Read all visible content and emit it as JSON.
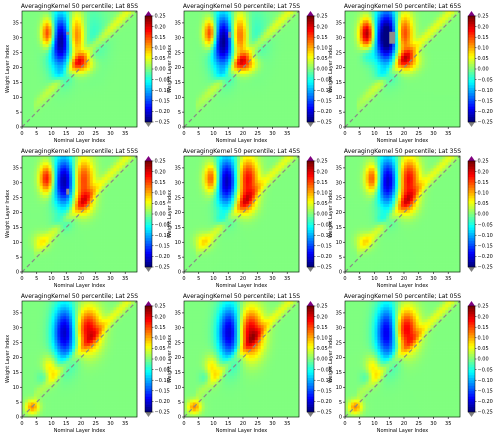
{
  "figure": {
    "panel_title_prefix": "AveragingKernel 50 percentile; Lat ",
    "xlabel": "Nominal Layer Index",
    "ylabel": "Weight Layer Index"
  },
  "chart_data": [
    {
      "type": "heatmap",
      "title": "AveragingKernel 50 percentile; Lat 85S",
      "lat": "85S",
      "xlabel": "Nominal Layer Index",
      "ylabel": "Weight Layer Index",
      "xlim": [
        0,
        39
      ],
      "ylim": [
        0,
        39
      ],
      "xticks": [
        0,
        5,
        10,
        15,
        20,
        25,
        30,
        35
      ],
      "yticks": [
        0,
        5,
        10,
        15,
        20,
        25,
        30,
        35
      ],
      "colorbar": {
        "min": -0.25,
        "max": 0.25,
        "ticks": [
          -0.25,
          -0.2,
          -0.15,
          -0.1,
          -0.05,
          0.0,
          0.05,
          0.1,
          0.15,
          0.2,
          0.25
        ],
        "colormap": "jet"
      },
      "features": [
        {
          "x": 8.5,
          "y": 31,
          "sx": 1.6,
          "sy": 3.5,
          "v": 0.22
        },
        {
          "x": 13,
          "y": 28.5,
          "sx": 3.0,
          "sy": 6.5,
          "v": -0.26
        },
        {
          "x": 17.5,
          "y": 30,
          "sx": 2.2,
          "sy": 5.5,
          "v": 0.2
        },
        {
          "x": 19.5,
          "y": 21,
          "sx": 2.8,
          "sy": 2.2,
          "v": 0.14
        },
        {
          "x": 13,
          "y": 17,
          "sx": 1.8,
          "sy": 1.5,
          "v": -0.05
        },
        {
          "x": 23,
          "y": 30,
          "sx": 3.5,
          "sy": 7,
          "v": -0.04
        }
      ],
      "masked": [
        {
          "x": 15,
          "y": 31,
          "w": 1,
          "h": 1
        }
      ]
    },
    {
      "type": "heatmap",
      "title": "AveragingKernel 50 percentile; Lat 75S",
      "lat": "75S",
      "xlabel": "Nominal Layer Index",
      "ylabel": "Weight Layer Index",
      "xlim": [
        0,
        39
      ],
      "ylim": [
        0,
        39
      ],
      "xticks": [
        0,
        5,
        10,
        15,
        20,
        25,
        30,
        35
      ],
      "yticks": [
        0,
        5,
        10,
        15,
        20,
        25,
        30,
        35
      ],
      "colorbar": {
        "min": -0.25,
        "max": 0.25,
        "ticks": [
          -0.25,
          -0.2,
          -0.15,
          -0.1,
          -0.05,
          0.0,
          0.05,
          0.1,
          0.15,
          0.2,
          0.25
        ],
        "colormap": "jet"
      },
      "features": [
        {
          "x": 8.5,
          "y": 31,
          "sx": 1.6,
          "sy": 3.5,
          "v": 0.22
        },
        {
          "x": 13,
          "y": 28.5,
          "sx": 3.0,
          "sy": 6.5,
          "v": -0.26
        },
        {
          "x": 18,
          "y": 30,
          "sx": 2.2,
          "sy": 5.5,
          "v": 0.2
        },
        {
          "x": 20,
          "y": 21,
          "sx": 2.8,
          "sy": 2.2,
          "v": 0.15
        },
        {
          "x": 13,
          "y": 17,
          "sx": 1.8,
          "sy": 1.5,
          "v": -0.05
        },
        {
          "x": 23,
          "y": 30,
          "sx": 3.5,
          "sy": 7,
          "v": -0.04
        }
      ],
      "masked": [
        {
          "x": 15,
          "y": 30,
          "w": 1,
          "h": 2
        }
      ]
    },
    {
      "type": "heatmap",
      "title": "AveragingKernel 50 percentile; Lat 65S",
      "lat": "65S",
      "xlabel": "Nominal Layer Index",
      "ylabel": "Weight Layer Index",
      "xlim": [
        0,
        39
      ],
      "ylim": [
        0,
        39
      ],
      "xticks": [
        0,
        5,
        10,
        15,
        20,
        25,
        30,
        35
      ],
      "yticks": [
        0,
        5,
        10,
        15,
        20,
        25,
        30,
        35
      ],
      "colorbar": {
        "min": -0.25,
        "max": 0.25,
        "ticks": [
          -0.25,
          -0.2,
          -0.15,
          -0.1,
          -0.05,
          0.0,
          0.05,
          0.1,
          0.15,
          0.2,
          0.25
        ],
        "colormap": "jet"
      },
      "features": [
        {
          "x": 7,
          "y": 31,
          "sx": 1.8,
          "sy": 3.5,
          "v": 0.25
        },
        {
          "x": 14,
          "y": 30,
          "sx": 3.2,
          "sy": 6.5,
          "v": -0.3
        },
        {
          "x": 19,
          "y": 31,
          "sx": 2.3,
          "sy": 5,
          "v": 0.22
        },
        {
          "x": 20,
          "y": 22,
          "sx": 2.8,
          "sy": 2.5,
          "v": 0.16
        },
        {
          "x": 13,
          "y": 17,
          "sx": 1.8,
          "sy": 1.5,
          "v": -0.05
        },
        {
          "x": 7,
          "y": 24,
          "sx": 1.5,
          "sy": 2,
          "v": -0.05
        }
      ],
      "masked": [
        {
          "x": 15,
          "y": 28,
          "w": 2,
          "h": 4
        }
      ]
    },
    {
      "type": "heatmap",
      "title": "AveragingKernel 50 percentile; Lat 55S",
      "lat": "55S",
      "xlabel": "Nominal Layer Index",
      "ylabel": "Weight Layer Index",
      "xlim": [
        0,
        39
      ],
      "ylim": [
        0,
        39
      ],
      "xticks": [
        0,
        5,
        10,
        15,
        20,
        25,
        30,
        35
      ],
      "yticks": [
        0,
        5,
        10,
        15,
        20,
        25,
        30,
        35
      ],
      "colorbar": {
        "min": -0.25,
        "max": 0.25,
        "ticks": [
          -0.25,
          -0.2,
          -0.15,
          -0.1,
          -0.05,
          0.0,
          0.05,
          0.1,
          0.15,
          0.2,
          0.25
        ],
        "colormap": "jet"
      },
      "features": [
        {
          "x": 8,
          "y": 31,
          "sx": 1.8,
          "sy": 3.5,
          "v": 0.2
        },
        {
          "x": 14,
          "y": 30,
          "sx": 2.8,
          "sy": 6,
          "v": -0.24
        },
        {
          "x": 20,
          "y": 31,
          "sx": 2.6,
          "sy": 5,
          "v": 0.17
        },
        {
          "x": 20,
          "y": 23,
          "sx": 2.5,
          "sy": 3,
          "v": 0.12
        },
        {
          "x": 13,
          "y": 16,
          "sx": 1.8,
          "sy": 1.5,
          "v": -0.05
        },
        {
          "x": 6,
          "y": 10,
          "sx": 2,
          "sy": 2,
          "v": 0.05
        }
      ],
      "masked": [
        {
          "x": 15,
          "y": 26,
          "w": 1,
          "h": 2
        }
      ]
    },
    {
      "type": "heatmap",
      "title": "AveragingKernel 50 percentile; Lat 45S",
      "lat": "45S",
      "xlabel": "Nominal Layer Index",
      "ylabel": "Weight Layer Index",
      "xlim": [
        0,
        39
      ],
      "ylim": [
        0,
        39
      ],
      "xticks": [
        0,
        5,
        10,
        15,
        20,
        25,
        30,
        35
      ],
      "yticks": [
        0,
        5,
        10,
        15,
        20,
        25,
        30,
        35
      ],
      "colorbar": {
        "min": -0.25,
        "max": 0.25,
        "ticks": [
          -0.25,
          -0.2,
          -0.15,
          -0.1,
          -0.05,
          0.0,
          0.05,
          0.1,
          0.15,
          0.2,
          0.25
        ],
        "colormap": "jet"
      },
      "features": [
        {
          "x": 9,
          "y": 31,
          "sx": 1.8,
          "sy": 3.5,
          "v": 0.18
        },
        {
          "x": 14,
          "y": 30,
          "sx": 2.8,
          "sy": 6,
          "v": -0.23
        },
        {
          "x": 21,
          "y": 31,
          "sx": 2.6,
          "sy": 5,
          "v": 0.19
        },
        {
          "x": 20,
          "y": 23,
          "sx": 2.5,
          "sy": 3,
          "v": 0.12
        },
        {
          "x": 13,
          "y": 17,
          "sx": 1.8,
          "sy": 1.5,
          "v": -0.05
        },
        {
          "x": 6,
          "y": 10,
          "sx": 2,
          "sy": 2,
          "v": 0.06
        }
      ],
      "masked": []
    },
    {
      "type": "heatmap",
      "title": "AveragingKernel 50 percentile; Lat 35S",
      "lat": "35S",
      "xlabel": "Nominal Layer Index",
      "ylabel": "Weight Layer Index",
      "xlim": [
        0,
        39
      ],
      "ylim": [
        0,
        39
      ],
      "xticks": [
        0,
        5,
        10,
        15,
        20,
        25,
        30,
        35
      ],
      "yticks": [
        0,
        5,
        10,
        15,
        20,
        25,
        30,
        35
      ],
      "colorbar": {
        "min": -0.25,
        "max": 0.25,
        "ticks": [
          -0.25,
          -0.2,
          -0.15,
          -0.1,
          -0.05,
          0.0,
          0.05,
          0.1,
          0.15,
          0.2,
          0.25
        ],
        "colormap": "jet"
      },
      "features": [
        {
          "x": 9,
          "y": 31,
          "sx": 1.8,
          "sy": 3.5,
          "v": 0.18
        },
        {
          "x": 14,
          "y": 30,
          "sx": 2.8,
          "sy": 6,
          "v": -0.22
        },
        {
          "x": 21,
          "y": 31,
          "sx": 2.6,
          "sy": 5,
          "v": 0.19
        },
        {
          "x": 20,
          "y": 23,
          "sx": 2.5,
          "sy": 3,
          "v": 0.12
        },
        {
          "x": 13,
          "y": 17,
          "sx": 1.8,
          "sy": 1.5,
          "v": -0.05
        },
        {
          "x": 6,
          "y": 10,
          "sx": 2,
          "sy": 2,
          "v": 0.06
        }
      ],
      "masked": []
    },
    {
      "type": "heatmap",
      "title": "AveragingKernel 50 percentile; Lat 25S",
      "lat": "25S",
      "xlabel": "Nominal Layer Index",
      "ylabel": "Weight Layer Index",
      "xlim": [
        0,
        39
      ],
      "ylim": [
        0,
        39
      ],
      "xticks": [
        0,
        5,
        10,
        15,
        20,
        25,
        30,
        35
      ],
      "yticks": [
        0,
        5,
        10,
        15,
        20,
        25,
        30,
        35
      ],
      "colorbar": {
        "min": -0.25,
        "max": 0.25,
        "ticks": [
          -0.25,
          -0.2,
          -0.15,
          -0.1,
          -0.05,
          0.0,
          0.05,
          0.1,
          0.15,
          0.2,
          0.25
        ],
        "colormap": "jet"
      },
      "features": [
        {
          "x": 14,
          "y": 28,
          "sx": 2.8,
          "sy": 6.5,
          "v": -0.22
        },
        {
          "x": 22,
          "y": 29,
          "sx": 3.0,
          "sy": 5,
          "v": 0.2
        },
        {
          "x": 9,
          "y": 16,
          "sx": 1.8,
          "sy": 3,
          "v": 0.08
        },
        {
          "x": 3,
          "y": 3,
          "sx": 1.6,
          "sy": 1.6,
          "v": 0.12
        },
        {
          "x": 7,
          "y": 13,
          "sx": 1.5,
          "sy": 2,
          "v": -0.04
        }
      ],
      "masked": []
    },
    {
      "type": "heatmap",
      "title": "AveragingKernel 50 percentile; Lat 15S",
      "lat": "15S",
      "xlabel": "Nominal Layer Index",
      "ylabel": "Weight Layer Index",
      "xlim": [
        0,
        39
      ],
      "ylim": [
        0,
        39
      ],
      "xticks": [
        0,
        5,
        10,
        15,
        20,
        25,
        30,
        35
      ],
      "yticks": [
        0,
        5,
        10,
        15,
        20,
        25,
        30,
        35
      ],
      "colorbar": {
        "min": -0.25,
        "max": 0.25,
        "ticks": [
          -0.25,
          -0.2,
          -0.15,
          -0.1,
          -0.05,
          0.0,
          0.05,
          0.1,
          0.15,
          0.2,
          0.25
        ],
        "colormap": "jet"
      },
      "features": [
        {
          "x": 15,
          "y": 28,
          "sx": 2.8,
          "sy": 6.5,
          "v": -0.22
        },
        {
          "x": 22,
          "y": 28,
          "sx": 3.0,
          "sy": 5.5,
          "v": 0.22
        },
        {
          "x": 9,
          "y": 16,
          "sx": 1.8,
          "sy": 3,
          "v": 0.08
        },
        {
          "x": 3,
          "y": 3,
          "sx": 1.6,
          "sy": 1.6,
          "v": 0.12
        },
        {
          "x": 7,
          "y": 13,
          "sx": 1.5,
          "sy": 2,
          "v": -0.04
        }
      ],
      "masked": []
    },
    {
      "type": "heatmap",
      "title": "AveragingKernel 50 percentile; Lat 05S",
      "lat": "05S",
      "xlabel": "Nominal Layer Index",
      "ylabel": "Weight Layer Index",
      "xlim": [
        0,
        39
      ],
      "ylim": [
        0,
        39
      ],
      "xticks": [
        0,
        5,
        10,
        15,
        20,
        25,
        30,
        35
      ],
      "yticks": [
        0,
        5,
        10,
        15,
        20,
        25,
        30,
        35
      ],
      "colorbar": {
        "min": -0.25,
        "max": 0.25,
        "ticks": [
          -0.25,
          -0.2,
          -0.15,
          -0.1,
          -0.05,
          0.0,
          0.05,
          0.1,
          0.15,
          0.2,
          0.25
        ],
        "colormap": "jet"
      },
      "features": [
        {
          "x": 14,
          "y": 28,
          "sx": 2.8,
          "sy": 6.5,
          "v": -0.22
        },
        {
          "x": 20,
          "y": 29,
          "sx": 3.0,
          "sy": 5,
          "v": 0.21
        },
        {
          "x": 9,
          "y": 16,
          "sx": 1.8,
          "sy": 3,
          "v": 0.08
        },
        {
          "x": 3,
          "y": 3,
          "sx": 1.6,
          "sy": 1.6,
          "v": 0.12
        },
        {
          "x": 7,
          "y": 13,
          "sx": 1.5,
          "sy": 2,
          "v": -0.04
        }
      ],
      "masked": []
    }
  ]
}
